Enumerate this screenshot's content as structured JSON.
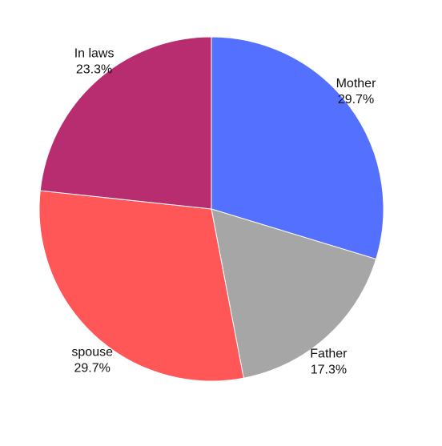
{
  "chart_data": {
    "type": "pie",
    "title": "",
    "start_angle_deg": 0,
    "direction": "clockwise",
    "legend": "none",
    "slices": [
      {
        "name": "Mother",
        "value": 29.7,
        "label": "29.7%",
        "color": "#5470FF"
      },
      {
        "name": "Father",
        "value": 17.3,
        "label": "17.3%",
        "color": "#A6A6A6"
      },
      {
        "name": "spouse",
        "value": 29.7,
        "label": "29.7%",
        "color": "#FF5757"
      },
      {
        "name": "In laws",
        "value": 23.3,
        "label": "23.3%",
        "color": "#B82D70"
      }
    ]
  }
}
